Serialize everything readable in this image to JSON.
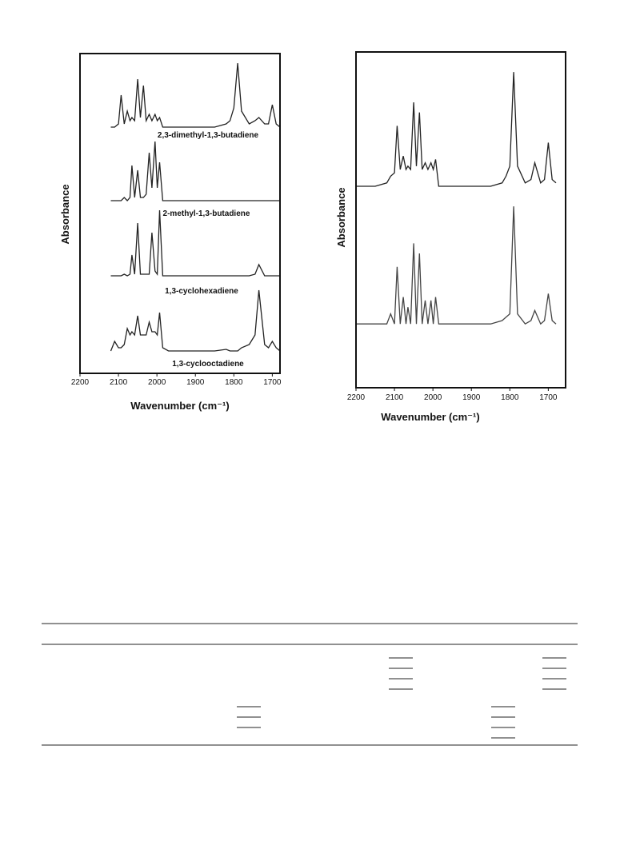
{
  "chart_data": [
    {
      "type": "line",
      "x_label": "Wavenumber (cm⁻¹)",
      "y_label": "Absorbance",
      "xlim": [
        2200,
        1680
      ],
      "xticks": [
        2200,
        2100,
        2000,
        1900,
        1800,
        1700
      ],
      "ylim": [
        0,
        100
      ],
      "annotations": [
        "2,3-dimethyl-1,3-butadiene",
        "2-methyl-1,3-butadiene",
        "1,3-cyclohexadiene",
        "1,3-cyclooctadiene"
      ],
      "x": [
        2200,
        2150,
        2120,
        2110,
        2100,
        2093,
        2085,
        2077,
        2070,
        2065,
        2058,
        2050,
        2043,
        2035,
        2028,
        2020,
        2013,
        2005,
        1999,
        1993,
        1985,
        1970,
        1950,
        1900,
        1850,
        1820,
        1810,
        1800,
        1790,
        1780,
        1760,
        1745,
        1735,
        1720,
        1710,
        1700,
        1690,
        1680
      ],
      "series": [
        {
          "color": "#222",
          "values": [
            null,
            null,
            77,
            77,
            78,
            87,
            78,
            82,
            79,
            80,
            79,
            92,
            80,
            90,
            79,
            81,
            79,
            81,
            79,
            80,
            77,
            77,
            77,
            77,
            77,
            78,
            79,
            83,
            97,
            82,
            78,
            79,
            80,
            78,
            78,
            84,
            78,
            77
          ]
        },
        {
          "color": "#222",
          "values": [
            null,
            null,
            54,
            54,
            54,
            54,
            55,
            54,
            55,
            65,
            55,
            63.5,
            55,
            55,
            56,
            69,
            58,
            72.5,
            58,
            66,
            54,
            54,
            54,
            54,
            54,
            54,
            54,
            54,
            54,
            54,
            54,
            54,
            54,
            54,
            54,
            54,
            54,
            54
          ]
        },
        {
          "color": "#222",
          "values": [
            null,
            null,
            30.5,
            30.5,
            30.5,
            30.5,
            31,
            30.5,
            31,
            37,
            31,
            47,
            31,
            31,
            31,
            31,
            44,
            32,
            31,
            51,
            30.5,
            30.5,
            30.5,
            30.5,
            30.5,
            30.5,
            30.5,
            30.5,
            30.5,
            30.5,
            30.5,
            31,
            34,
            30.5,
            30.5,
            30.5,
            30.5,
            30.5
          ]
        },
        {
          "color": "#222",
          "values": [
            null,
            null,
            7,
            10,
            8,
            8,
            9,
            14,
            12,
            13,
            12,
            18,
            12,
            12,
            12,
            16,
            13,
            13,
            12,
            19,
            8,
            7,
            7,
            7,
            7,
            7.5,
            7,
            7,
            7,
            8,
            9,
            12,
            26,
            9,
            8,
            10,
            8,
            7
          ]
        }
      ]
    },
    {
      "type": "line",
      "x_label": "Wavenumber (cm⁻¹)",
      "y_label": "Absorbance",
      "xlim": [
        2200,
        1655
      ],
      "xticks": [
        2200,
        2100,
        2000,
        1900,
        1800,
        1700
      ],
      "ylim": [
        0,
        100
      ],
      "x": [
        2200,
        2150,
        2120,
        2110,
        2100,
        2093,
        2085,
        2077,
        2070,
        2065,
        2058,
        2050,
        2043,
        2035,
        2028,
        2020,
        2013,
        2005,
        1999,
        1993,
        1985,
        1970,
        1950,
        1900,
        1850,
        1820,
        1810,
        1800,
        1790,
        1780,
        1760,
        1745,
        1735,
        1720,
        1710,
        1700,
        1690,
        1680
      ],
      "series": [
        {
          "color": "#222",
          "values": [
            60,
            60,
            61,
            63,
            64,
            78,
            65,
            69,
            65,
            66,
            65,
            85,
            66,
            82,
            65,
            67,
            65,
            67,
            65,
            68,
            60,
            60,
            60,
            60,
            60,
            61,
            63,
            66,
            94,
            66,
            61,
            62,
            67,
            61,
            62,
            73,
            62,
            61
          ]
        },
        {
          "color": "#444",
          "values": [
            19,
            19,
            19,
            22,
            19,
            36,
            19,
            27,
            19,
            24,
            19,
            43,
            19,
            40,
            19,
            26,
            19,
            26,
            19,
            27,
            19,
            19,
            19,
            19,
            19,
            20,
            21,
            22,
            54,
            22,
            19,
            20,
            23,
            19,
            20,
            28,
            20,
            19
          ]
        }
      ]
    }
  ]
}
